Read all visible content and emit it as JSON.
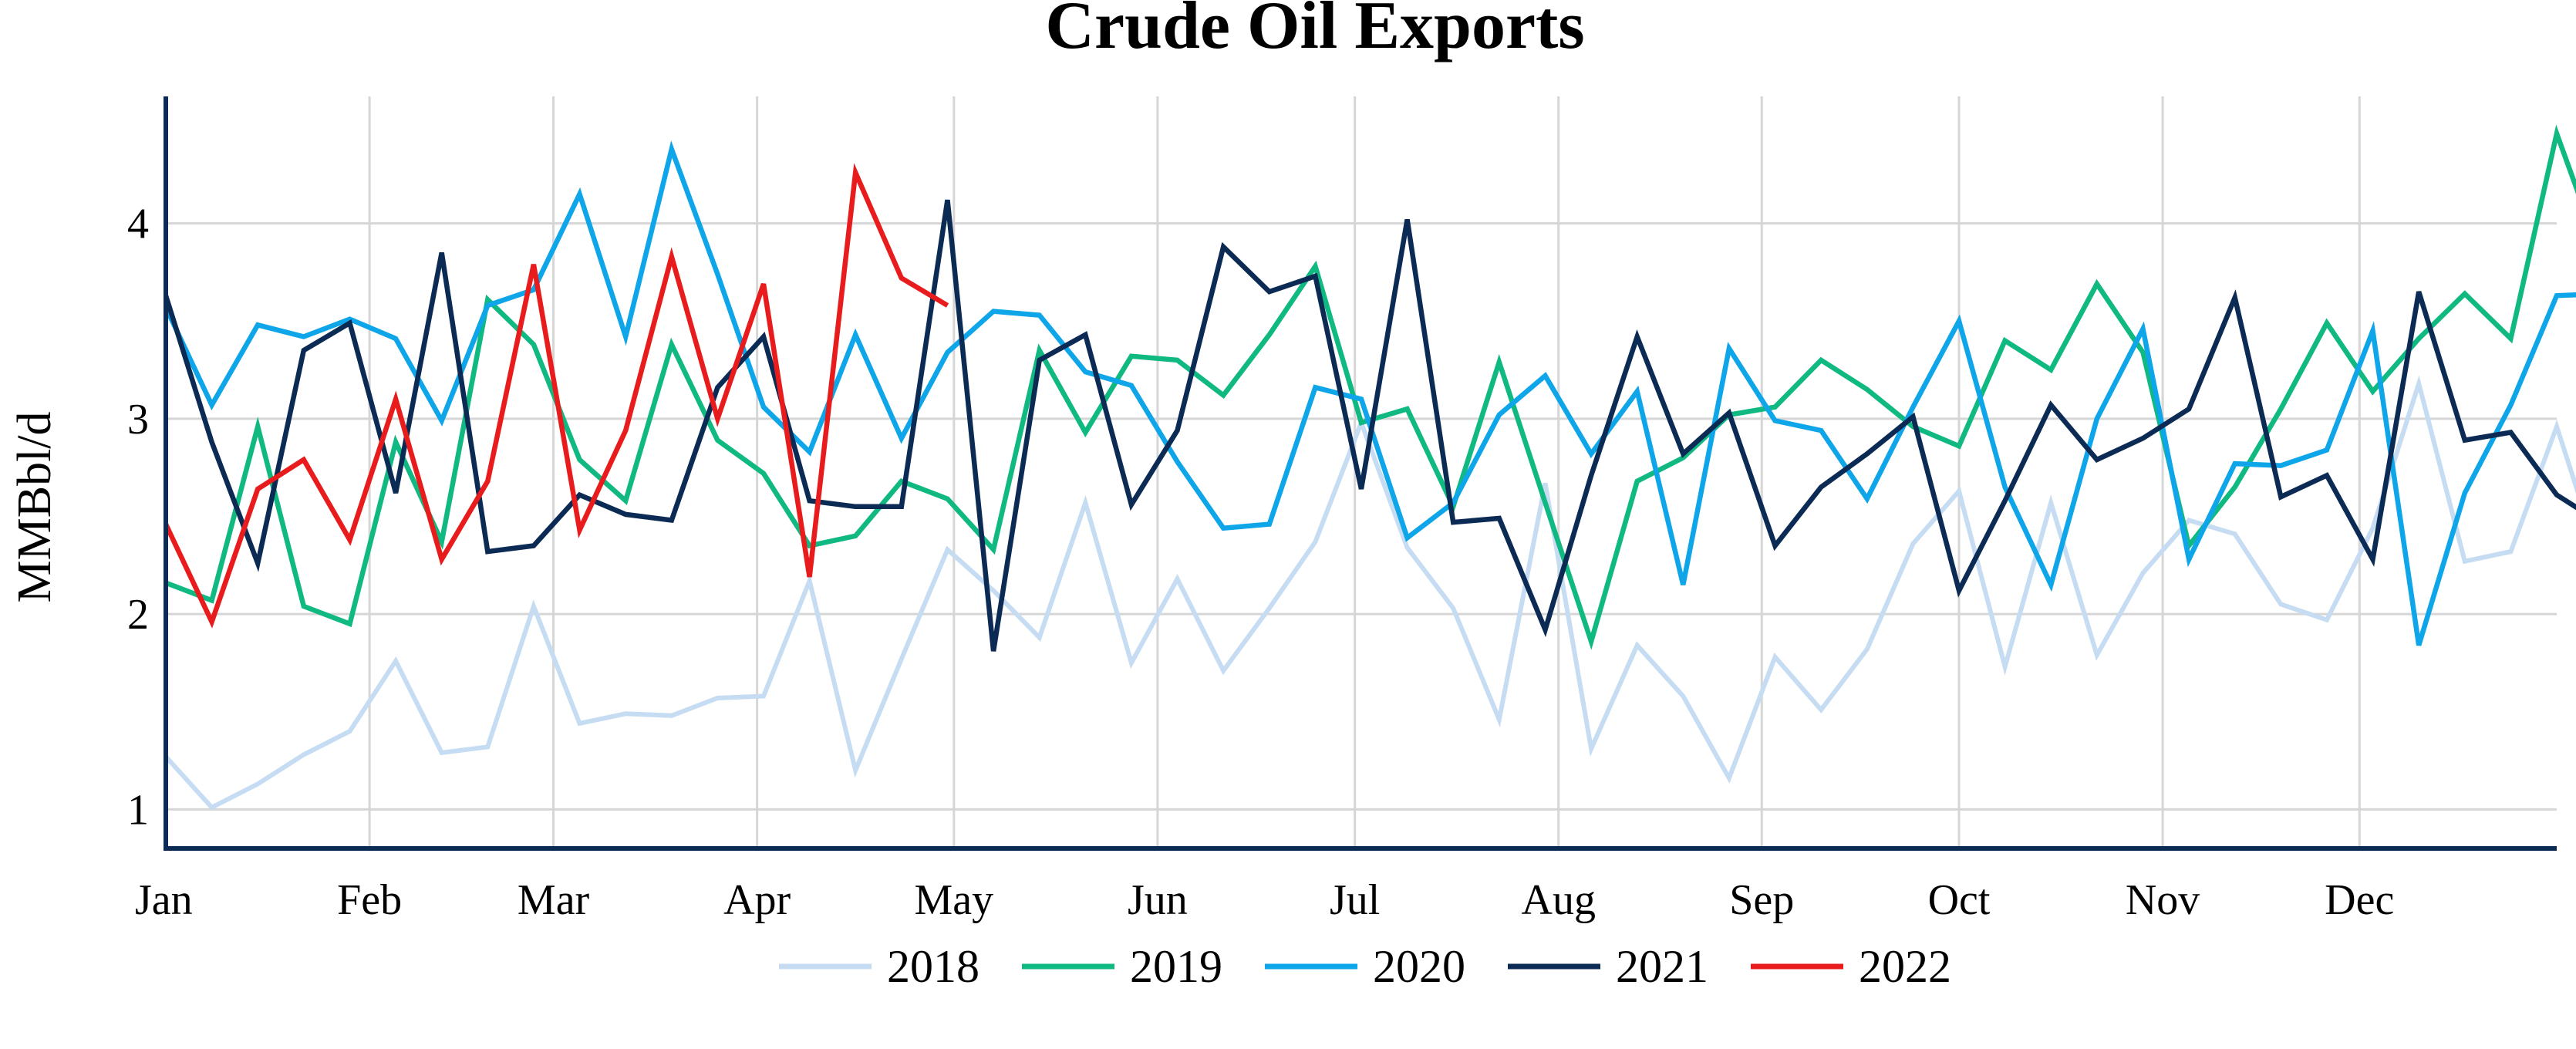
{
  "chart_data": {
    "type": "line",
    "title": "Crude Oil Exports",
    "xlabel": "",
    "ylabel": "MMBbl/d",
    "x_unit": "week of year",
    "xlim": [
      1,
      53
    ],
    "ylim": [
      0.8,
      4.65
    ],
    "yticks": [
      1,
      2,
      3,
      4
    ],
    "month_ticks": [
      {
        "label": "Jan",
        "week": 1
      },
      {
        "label": "Feb",
        "week": 5.43
      },
      {
        "label": "Mar",
        "week": 9.43
      },
      {
        "label": "Apr",
        "week": 13.86
      },
      {
        "label": "May",
        "week": 18.14
      },
      {
        "label": "Jun",
        "week": 22.57
      },
      {
        "label": "Jul",
        "week": 26.86
      },
      {
        "label": "Aug",
        "week": 31.29
      },
      {
        "label": "Sep",
        "week": 35.71
      },
      {
        "label": "Oct",
        "week": 40
      },
      {
        "label": "Nov",
        "week": 44.43
      },
      {
        "label": "Dec",
        "week": 48.71
      }
    ],
    "grid": true,
    "legend_position": "bottom",
    "series": [
      {
        "name": "2018",
        "color": "#c5dcf2",
        "start_week": 1,
        "values": [
          1.27,
          1.01,
          1.13,
          1.28,
          1.4,
          1.76,
          1.29,
          1.32,
          2.04,
          1.44,
          1.49,
          1.48,
          1.57,
          1.58,
          2.17,
          1.2,
          1.77,
          2.33,
          2.12,
          1.88,
          2.57,
          1.75,
          2.18,
          1.71,
          2.03,
          2.37,
          2.98,
          2.34,
          2.03,
          1.46,
          2.67,
          1.31,
          1.84,
          1.58,
          1.16,
          1.78,
          1.51,
          1.82,
          2.36,
          2.63,
          1.73,
          2.57,
          1.79,
          2.21,
          2.48,
          2.41,
          2.05,
          1.97,
          2.44,
          3.18,
          2.27,
          2.32,
          2.96,
          2.23,
          2.12
        ]
      },
      {
        "name": "2019",
        "color": "#10b981",
        "start_week": 1,
        "values": [
          2.16,
          2.07,
          2.96,
          2.04,
          1.95,
          2.88,
          2.37,
          3.61,
          3.38,
          2.79,
          2.58,
          3.38,
          2.89,
          2.72,
          2.35,
          2.4,
          2.68,
          2.59,
          2.33,
          3.35,
          2.93,
          3.32,
          3.3,
          3.12,
          3.43,
          3.78,
          2.98,
          3.05,
          2.55,
          3.29,
          2.57,
          1.86,
          2.68,
          2.8,
          3.02,
          3.06,
          3.3,
          3.15,
          2.96,
          2.86,
          3.4,
          3.25,
          3.69,
          3.34,
          2.35,
          2.65,
          3.05,
          3.49,
          3.14,
          3.41,
          3.64,
          3.41,
          4.46,
          3.81,
          3.74
        ]
      },
      {
        "name": "2020",
        "color": "#0ea5e9",
        "start_week": 1,
        "values": [
          3.57,
          3.07,
          3.48,
          3.42,
          3.51,
          3.41,
          2.99,
          3.58,
          3.66,
          4.15,
          3.42,
          4.38,
          3.74,
          3.06,
          2.83,
          3.43,
          2.9,
          3.34,
          3.55,
          3.53,
          3.24,
          3.17,
          2.78,
          2.44,
          2.46,
          3.16,
          3.1,
          2.39,
          2.57,
          3.02,
          3.22,
          2.82,
          3.14,
          2.15,
          3.36,
          2.99,
          2.94,
          2.59,
          3.06,
          3.5,
          2.65,
          2.15,
          3.0,
          3.46,
          2.28,
          2.77,
          2.76,
          2.84,
          3.45,
          1.84,
          2.62,
          3.07,
          3.63,
          3.64,
          3.61
        ]
      },
      {
        "name": "2021",
        "color": "#0b2a54",
        "start_week": 1,
        "values": [
          3.63,
          2.88,
          2.26,
          3.35,
          3.49,
          2.62,
          3.85,
          2.32,
          2.35,
          2.61,
          2.51,
          2.48,
          3.16,
          3.42,
          2.58,
          2.55,
          2.55,
          4.12,
          1.81,
          3.3,
          3.43,
          2.56,
          2.94,
          3.88,
          3.65,
          3.73,
          2.64,
          4.02,
          2.47,
          2.49,
          1.92,
          2.71,
          3.42,
          2.82,
          3.03,
          2.35,
          2.65,
          2.82,
          3.01,
          2.12,
          2.58,
          3.07,
          2.79,
          2.9,
          3.05,
          3.62,
          2.6,
          2.71,
          2.28,
          3.65,
          2.89,
          2.93,
          2.61,
          2.46
        ]
      },
      {
        "name": "2022",
        "color": "#e81c1c",
        "start_week": 1,
        "values": [
          2.46,
          1.96,
          2.64,
          2.79,
          2.38,
          3.1,
          2.28,
          2.68,
          3.79,
          2.43,
          2.94,
          3.83,
          3.0,
          3.69,
          2.19,
          4.26,
          3.72,
          3.58
        ]
      }
    ]
  }
}
